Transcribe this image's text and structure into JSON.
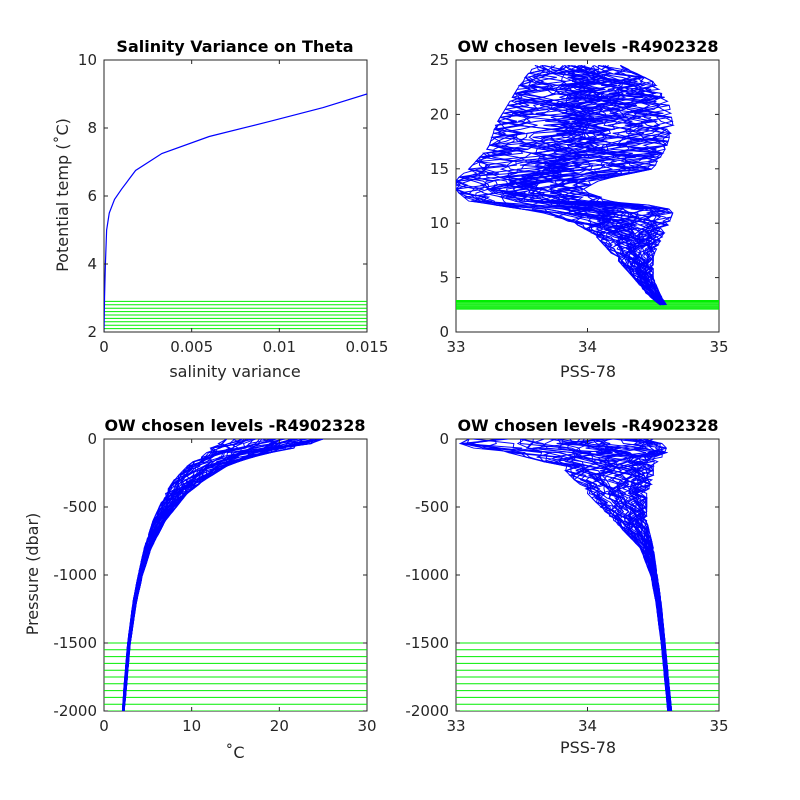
{
  "colors": {
    "profile": "#0000ff",
    "levels": "#00ee00",
    "axes": "#262626",
    "background": "#ffffff"
  },
  "chart_data": [
    {
      "id": "ax1",
      "type": "line",
      "title": "Salinity Variance on Theta",
      "xlabel": "salinity variance",
      "ylabel": "Potential temp (˚C)",
      "xlim": [
        0,
        0.015
      ],
      "ylim": [
        2,
        10
      ],
      "xticks": [
        0,
        0.005,
        0.01,
        0.015
      ],
      "xtick_labels": [
        "0",
        "0.005",
        "0.01",
        "0.015"
      ],
      "yticks": [
        2,
        4,
        6,
        8,
        10
      ],
      "ytick_labels": [
        "2",
        "4",
        "6",
        "8",
        "10"
      ],
      "series": [
        {
          "color": "#0000ff",
          "x": [
            0,
            3e-05,
            8e-05,
            0.00015,
            0.0003,
            0.0006,
            0.001,
            0.0018,
            0.0033,
            0.006,
            0.0095,
            0.0125,
            0.015
          ],
          "y": [
            2.0,
            3.0,
            4.0,
            5.0,
            5.5,
            5.9,
            6.2,
            6.75,
            7.25,
            7.75,
            8.2,
            8.6,
            9.0
          ]
        }
      ],
      "hlines": [
        2.1,
        2.2,
        2.3,
        2.4,
        2.5,
        2.6,
        2.7,
        2.8,
        2.9
      ]
    },
    {
      "id": "ax2",
      "type": "line",
      "title": "OW chosen levels -R4902328",
      "xlabel": "PSS-78",
      "ylabel": "",
      "xlim": [
        33,
        35
      ],
      "ylim": [
        0,
        25
      ],
      "xticks": [
        33,
        34,
        35
      ],
      "xtick_labels": [
        "33",
        "34",
        "35"
      ],
      "yticks": [
        0,
        5,
        10,
        15,
        20,
        25
      ],
      "ytick_labels": [
        "0",
        "5",
        "10",
        "15",
        "20",
        "25"
      ],
      "profile_band": {
        "color": "#0000ff",
        "y": [
          2.5,
          3.5,
          5,
          7,
          9,
          10,
          11,
          11.5,
          12,
          13,
          14,
          15,
          17,
          19,
          21,
          23,
          24.5
        ],
        "xmin": [
          34.55,
          34.45,
          34.35,
          34.2,
          34.05,
          33.9,
          33.65,
          33.4,
          33.1,
          33.0,
          33.0,
          33.1,
          33.25,
          33.3,
          33.4,
          33.5,
          33.6
        ],
        "xmax": [
          34.6,
          34.55,
          34.5,
          34.5,
          34.58,
          34.62,
          34.65,
          34.6,
          34.2,
          33.95,
          34.1,
          34.5,
          34.6,
          34.65,
          34.62,
          34.5,
          34.25
        ],
        "count": 45
      },
      "hlines": [
        2.1,
        2.2,
        2.3,
        2.4,
        2.5,
        2.6,
        2.7,
        2.8,
        2.9
      ]
    },
    {
      "id": "ax3",
      "type": "line",
      "title": "OW chosen levels -R4902328",
      "xlabel": "˚C",
      "ylabel": "Pressure (dbar)",
      "xlim": [
        0,
        30
      ],
      "ylim": [
        -2000,
        0
      ],
      "xticks": [
        0,
        10,
        20,
        30
      ],
      "xtick_labels": [
        "0",
        "10",
        "20",
        "30"
      ],
      "yticks": [
        -2000,
        -1500,
        -1000,
        -500,
        0
      ],
      "ytick_labels": [
        "-2000",
        "-1500",
        "-1000",
        "-500",
        "0"
      ],
      "profile_band": {
        "color": "#0000ff",
        "y": [
          0,
          -50,
          -100,
          -150,
          -200,
          -300,
          -400,
          -600,
          -800,
          -1000,
          -1200,
          -1500,
          -1800,
          -2000
        ],
        "xmin": [
          14,
          12.5,
          11.5,
          10.5,
          9.5,
          8,
          7,
          5.6,
          4.6,
          3.9,
          3.3,
          2.7,
          2.3,
          2.1
        ],
        "xmax": [
          25,
          23,
          19,
          16,
          14,
          11.5,
          9.5,
          7,
          5.4,
          4.4,
          3.7,
          3.0,
          2.6,
          2.3
        ],
        "count": 45
      },
      "hlines": [
        -1500,
        -1550,
        -1600,
        -1650,
        -1700,
        -1750,
        -1800,
        -1850,
        -1900,
        -1950,
        -2000
      ]
    },
    {
      "id": "ax4",
      "type": "line",
      "title": "OW chosen levels -R4902328",
      "xlabel": "PSS-78",
      "ylabel": "",
      "xlim": [
        33,
        35
      ],
      "ylim": [
        -2000,
        0
      ],
      "xticks": [
        33,
        34,
        35
      ],
      "xtick_labels": [
        "33",
        "34",
        "35"
      ],
      "yticks": [
        -2000,
        -1500,
        -1000,
        -500,
        0
      ],
      "ytick_labels": [
        "-2000",
        "-1500",
        "-1000",
        "-500",
        "0"
      ],
      "profile_band": {
        "color": "#0000ff",
        "y": [
          0,
          -50,
          -100,
          -200,
          -300,
          -400,
          -600,
          -800,
          -1000,
          -1200,
          -1500,
          -1800,
          -2000
        ],
        "xmin": [
          33.1,
          33.0,
          33.4,
          33.8,
          33.9,
          34.0,
          34.2,
          34.4,
          34.48,
          34.52,
          34.56,
          34.59,
          34.61
        ],
        "xmax": [
          34.5,
          34.6,
          34.6,
          34.5,
          34.5,
          34.45,
          34.45,
          34.5,
          34.53,
          34.56,
          34.59,
          34.62,
          34.64
        ],
        "count": 45
      },
      "hlines": [
        -1500,
        -1550,
        -1600,
        -1650,
        -1700,
        -1750,
        -1800,
        -1850,
        -1900,
        -1950,
        -2000
      ]
    }
  ]
}
